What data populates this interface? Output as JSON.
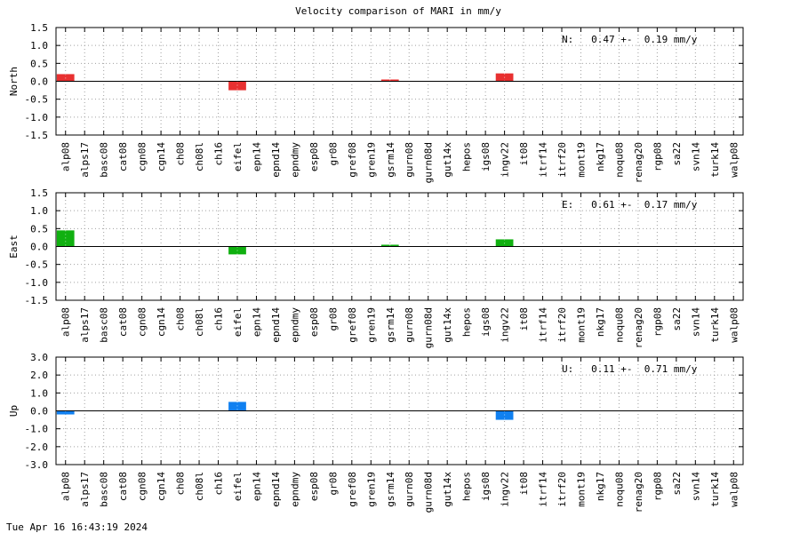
{
  "title": "Velocity comparison of MARI in mm/y",
  "timestamp": "Tue Apr 16 16:43:19 2024",
  "chart_data": {
    "type": "bar",
    "categories": [
      "alp08",
      "alps17",
      "basc08",
      "cat08",
      "cgn08",
      "cgn14",
      "ch08",
      "ch08l",
      "ch16",
      "eifel",
      "epn14",
      "epnd14",
      "epndmy",
      "esp08",
      "gr08",
      "gref08",
      "gren19",
      "gsrm14",
      "gurn08",
      "gurn08d",
      "gut14x",
      "hepos",
      "igs08",
      "ingv22",
      "it08",
      "itrf14",
      "itrf20",
      "mont19",
      "nkg17",
      "noqu08",
      "renag20",
      "rgp08",
      "sa22",
      "svn14",
      "turk14",
      "walp08"
    ],
    "panels": [
      {
        "ylabel": "North",
        "color": "#e83030",
        "ylim": [
          -1.5,
          1.5
        ],
        "yticks": [
          1.5,
          1.0,
          0.5,
          0.0,
          -0.5,
          -1.0,
          -1.5
        ],
        "ytick_labels": [
          "1.5",
          "1.0",
          "0.5",
          "0.0",
          "-0.5",
          "-1.0",
          "-1.5"
        ],
        "annotation": "N:   0.47 +-  0.19 mm/y",
        "values": [
          0.2,
          0,
          0,
          0,
          0,
          0,
          0,
          0,
          0,
          -0.25,
          0,
          0,
          0,
          0,
          0,
          0,
          0,
          0.05,
          0,
          0,
          0,
          0,
          0,
          0.22,
          0,
          0,
          0,
          0,
          0,
          0,
          0,
          0,
          0,
          0,
          0,
          0
        ]
      },
      {
        "ylabel": "East",
        "color": "#10b010",
        "ylim": [
          -1.5,
          1.5
        ],
        "yticks": [
          1.5,
          1.0,
          0.5,
          0.0,
          -0.5,
          -1.0,
          -1.5
        ],
        "ytick_labels": [
          "1.5",
          "1.0",
          "0.5",
          "0.0",
          "-0.5",
          "-1.0",
          "-1.5"
        ],
        "annotation": "E:   0.61 +-  0.17 mm/y",
        "values": [
          0.45,
          0,
          0,
          0,
          0,
          0,
          0,
          0,
          0,
          -0.22,
          0,
          0,
          0,
          0,
          0,
          0,
          0,
          0.05,
          0,
          0,
          0,
          0,
          0,
          0.2,
          0,
          0,
          0,
          0,
          0,
          0,
          0,
          0,
          0,
          0,
          0,
          0
        ]
      },
      {
        "ylabel": "Up",
        "color": "#1080f0",
        "ylim": [
          -3.0,
          3.0
        ],
        "yticks": [
          3.0,
          2.0,
          1.0,
          0.0,
          -1.0,
          -2.0,
          -3.0
        ],
        "ytick_labels": [
          "3.0",
          "2.0",
          "1.0",
          "0.0",
          "-1.0",
          "-2.0",
          "-3.0"
        ],
        "annotation": "U:   0.11 +-  0.71 mm/y",
        "values": [
          -0.2,
          0,
          0,
          0,
          0,
          0,
          0,
          0,
          0,
          0.5,
          0,
          0,
          0,
          0,
          0,
          0,
          0,
          0,
          0,
          0,
          0,
          0,
          0,
          -0.5,
          0,
          0,
          0,
          0,
          0,
          0,
          0,
          0,
          0,
          0,
          0,
          0
        ]
      }
    ],
    "grid": true
  }
}
